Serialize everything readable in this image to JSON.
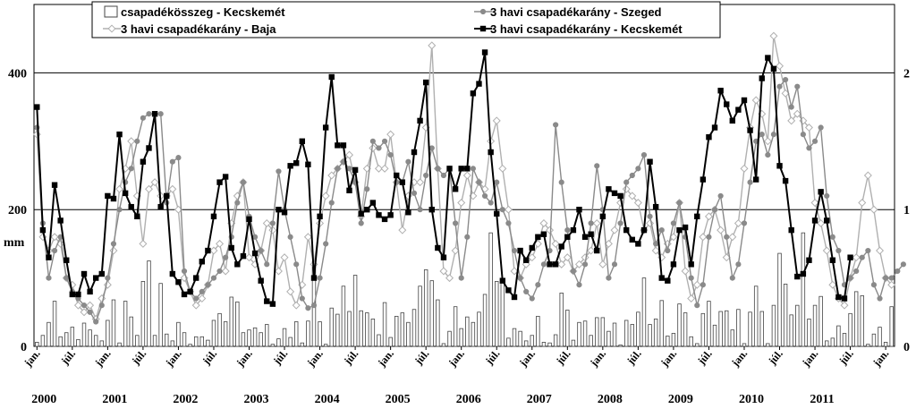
{
  "chart_data": {
    "type": "line",
    "title": "",
    "ylabel_left": "mm",
    "ylabel_right": "",
    "ylim_left": [
      0,
      500
    ],
    "ylim_right": [
      0,
      2.5
    ],
    "yticks_left": [
      "0",
      "200",
      "400"
    ],
    "yticks_right": [
      "0",
      "1",
      "2"
    ],
    "grid": "horizontal",
    "legend_position": "top",
    "month_labels": [
      "jan.",
      "júl."
    ],
    "years": [
      "2000",
      "2001",
      "2002",
      "2003",
      "2004",
      "2005",
      "2006",
      "2007",
      "2008",
      "2009",
      "2010",
      "2011"
    ],
    "series": [
      {
        "name": "csapadékösszeg - Kecskemét",
        "type": "bar",
        "axis": "left",
        "values": [
          6,
          16,
          35,
          66,
          14,
          20,
          28,
          10,
          34,
          24,
          16,
          8,
          38,
          68,
          5,
          66,
          43,
          16,
          95,
          125,
          16,
          92,
          18,
          8,
          35,
          20,
          3,
          14,
          14,
          9,
          38,
          48,
          36,
          72,
          65,
          20,
          24,
          27,
          20,
          32,
          3,
          11,
          26,
          13,
          36,
          5,
          37,
          124,
          36,
          3,
          56,
          47,
          88,
          51,
          104,
          52,
          49,
          40,
          17,
          64,
          13,
          44,
          49,
          35,
          54,
          88,
          112,
          96,
          68,
          4,
          22,
          58,
          26,
          43,
          35,
          50,
          76,
          166,
          95,
          99,
          12,
          26,
          22,
          8,
          16,
          44,
          6,
          5,
          17,
          78,
          53,
          9,
          35,
          37,
          16,
          42,
          42,
          22,
          34,
          2,
          38,
          32,
          50,
          100,
          32,
          40,
          67,
          15,
          19,
          62,
          49,
          14,
          4,
          48,
          66,
          31,
          51,
          52,
          24,
          54,
          4,
          50,
          88,
          51,
          4,
          60,
          136,
          91,
          46,
          60,
          166,
          40,
          60,
          73,
          8,
          12,
          30,
          19,
          48,
          80,
          74,
          3,
          18,
          28,
          6,
          58
        ]
      },
      {
        "name": "3 havi csapadékarány - Szeged",
        "type": "line",
        "axis": "right",
        "marker": "circle",
        "color": "#8a8a8a",
        "values": [
          1.6,
          0.9,
          0.5,
          0.7,
          0.8,
          0.5,
          0.4,
          0.35,
          0.3,
          0.25,
          0.18,
          0.3,
          0.5,
          0.75,
          1.0,
          1.2,
          1.3,
          1.5,
          1.67,
          1.7,
          1.7,
          1.7,
          1.05,
          1.35,
          1.38,
          0.55,
          0.4,
          0.35,
          0.4,
          0.45,
          0.5,
          0.55,
          0.65,
          0.8,
          1.05,
          1.2,
          0.95,
          0.8,
          0.7,
          0.6,
          0.9,
          1.28,
          1.0,
          0.8,
          0.6,
          0.35,
          0.28,
          0.3,
          0.5,
          0.75,
          1.05,
          1.3,
          1.35,
          1.3,
          1.2,
          0.9,
          1.15,
          1.5,
          1.45,
          1.5,
          1.4,
          1.2,
          1.2,
          1.35,
          1.12,
          1.0,
          1.25,
          1.45,
          1.3,
          1.25,
          1.3,
          0.9,
          0.5,
          0.8,
          1.3,
          1.2,
          1.1,
          1.05,
          1.2,
          1.0,
          0.9,
          0.7,
          0.5,
          0.4,
          0.35,
          0.45,
          0.6,
          0.7,
          1.62,
          1.2,
          0.85,
          0.55,
          0.45,
          0.6,
          0.9,
          1.32,
          1.0,
          0.5,
          0.6,
          0.9,
          1.2,
          1.25,
          1.3,
          1.4,
          0.95,
          0.75,
          0.85,
          0.7,
          0.9,
          1.05,
          0.8,
          0.5,
          0.3,
          0.45,
          0.8,
          1.0,
          1.1,
          0.8,
          0.5,
          0.6,
          0.9,
          1.2,
          1.5,
          1.55,
          1.4,
          1.55,
          1.9,
          1.95,
          1.75,
          1.9,
          1.55,
          1.45,
          1.5,
          1.6,
          1.1,
          0.8,
          0.7,
          0.45,
          0.5,
          0.55,
          0.65,
          0.7,
          0.45,
          0.35,
          0.5,
          0.5,
          0.55,
          0.6
        ]
      },
      {
        "name": "3 havi csapadékarány - Baja",
        "type": "line",
        "axis": "right",
        "marker": "diamond",
        "color": "#b0b0b0",
        "values": [
          1.55,
          0.8,
          0.7,
          0.8,
          0.75,
          0.5,
          0.45,
          0.3,
          0.25,
          0.3,
          0.2,
          0.35,
          0.45,
          0.7,
          1.15,
          1.3,
          1.5,
          1.1,
          0.75,
          1.15,
          1.2,
          1.1,
          1.1,
          1.15,
          1.0,
          0.5,
          0.4,
          0.3,
          0.35,
          0.45,
          0.7,
          0.75,
          0.55,
          0.9,
          1.1,
          1.2,
          0.65,
          0.6,
          0.7,
          0.9,
          0.85,
          0.55,
          0.65,
          0.4,
          0.3,
          0.45,
          0.8,
          0.6,
          0.9,
          1.1,
          1.25,
          1.3,
          1.35,
          1.4,
          1.2,
          0.95,
          1.3,
          1.45,
          1.3,
          1.3,
          1.55,
          1.2,
          0.85,
          1.1,
          1.2,
          1.2,
          1.6,
          2.2,
          1.3,
          0.55,
          0.5,
          0.7,
          1.05,
          1.25,
          1.1,
          1.2,
          1.15,
          1.5,
          1.65,
          1.3,
          1.0,
          0.55,
          0.5,
          0.6,
          0.65,
          0.75,
          0.9,
          0.85,
          0.75,
          0.6,
          0.65,
          0.55,
          0.6,
          0.65,
          0.7,
          0.9,
          0.6,
          0.75,
          0.85,
          1.05,
          1.15,
          1.1,
          1.05,
          0.85,
          0.9,
          0.7,
          0.65,
          0.75,
          0.8,
          1.05,
          0.55,
          0.35,
          0.45,
          0.8,
          0.95,
          1.0,
          0.85,
          0.65,
          0.8,
          0.9,
          1.3,
          1.6,
          1.8,
          1.7,
          1.5,
          2.27,
          2.05,
          1.85,
          1.65,
          1.7,
          1.65,
          1.6,
          1.05,
          0.9,
          0.7,
          0.45,
          0.35,
          0.3,
          0.5,
          0.65,
          1.05,
          1.25,
          1.0,
          0.7,
          0.5,
          0.45
        ]
      },
      {
        "name": "3 havi csapadékarány - Kecskemét",
        "type": "line",
        "axis": "right",
        "marker": "square",
        "color": "#000000",
        "values": [
          1.75,
          0.85,
          0.65,
          1.18,
          0.92,
          0.63,
          0.38,
          0.38,
          0.53,
          0.4,
          0.5,
          0.53,
          1.1,
          1.08,
          1.55,
          1.12,
          1.02,
          0.95,
          1.35,
          1.45,
          1.7,
          1.02,
          1.1,
          0.53,
          0.47,
          0.38,
          0.4,
          0.5,
          0.62,
          0.7,
          0.95,
          1.2,
          1.24,
          0.72,
          0.6,
          0.66,
          0.93,
          0.68,
          0.48,
          0.33,
          0.31,
          1.0,
          0.98,
          1.32,
          1.34,
          1.5,
          1.33,
          0.5,
          0.95,
          1.6,
          1.97,
          1.47,
          1.47,
          1.14,
          1.29,
          0.97,
          1.0,
          1.05,
          0.96,
          0.93,
          0.96,
          1.25,
          1.2,
          0.98,
          1.42,
          1.65,
          1.93,
          1.0,
          0.72,
          0.65,
          1.3,
          1.15,
          1.3,
          1.3,
          1.85,
          1.92,
          2.15,
          1.42,
          0.97,
          0.48,
          0.41,
          0.36,
          0.7,
          0.63,
          0.72,
          0.8,
          0.82,
          0.6,
          0.6,
          0.73,
          0.8,
          0.85,
          1.0,
          0.8,
          0.82,
          0.7,
          0.95,
          1.15,
          1.12,
          1.1,
          0.85,
          0.78,
          0.75,
          0.85,
          1.35,
          1.02,
          0.5,
          0.48,
          0.6,
          0.85,
          0.87,
          0.6,
          0.95,
          1.22,
          1.53,
          1.6,
          1.87,
          1.77,
          1.65,
          1.73,
          1.8,
          1.58,
          1.22,
          1.96,
          2.11,
          2.03,
          1.32,
          1.21,
          0.85,
          0.51,
          0.53,
          0.63,
          0.92,
          1.13,
          0.92,
          0.63,
          0.36,
          0.35,
          0.65
        ]
      }
    ]
  }
}
